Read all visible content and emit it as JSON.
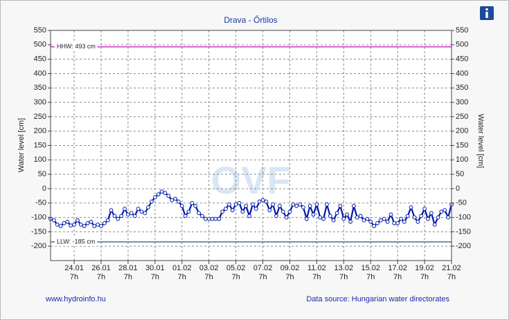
{
  "chart_data": {
    "type": "line",
    "title": "Drava - Őrtilos",
    "y_label": "Water level [cm]",
    "y2_label": "Water level [cm]",
    "watermark": "OVF",
    "footer_left": "www.hydroinfo.hu",
    "footer_right": "Data source: Hungarian water directorates",
    "color": "#0018a8",
    "grid": true,
    "ylim": [
      -250,
      550
    ],
    "yticks": [
      -200,
      -150,
      -100,
      -50,
      0,
      50,
      100,
      150,
      200,
      250,
      300,
      350,
      400,
      450,
      500,
      550
    ],
    "xlim": [
      "22.01 13h",
      "21.02 7h"
    ],
    "xticks": [
      [
        "24.01",
        "7h"
      ],
      [
        "26.01",
        "7h"
      ],
      [
        "28.01",
        "7h"
      ],
      [
        "30.01",
        "7h"
      ],
      [
        "01.02",
        "7h"
      ],
      [
        "03.02",
        "7h"
      ],
      [
        "05.02",
        "7h"
      ],
      [
        "07.02",
        "7h"
      ],
      [
        "09.02",
        "7h"
      ],
      [
        "11.02",
        "7h"
      ],
      [
        "13.02",
        "7h"
      ],
      [
        "15.02",
        "7h"
      ],
      [
        "17.02",
        "7h"
      ],
      [
        "19.02",
        "7h"
      ],
      [
        "21.02",
        "7h"
      ]
    ],
    "annotations": [
      {
        "label": "HHW: 493 cm",
        "value": 493,
        "color": "#d030c8"
      },
      {
        "label": "LLW: -185 cm",
        "value": -185,
        "color": "#4a6a9a"
      }
    ],
    "x": [
      "22.01 13h",
      "22.01 19h",
      "23.01 1h",
      "23.01 7h",
      "23.01 13h",
      "23.01 19h",
      "24.01 1h",
      "24.01 7h",
      "24.01 13h",
      "24.01 19h",
      "25.01 1h",
      "25.01 7h",
      "25.01 13h",
      "25.01 19h",
      "26.01 1h",
      "26.01 7h",
      "26.01 13h",
      "26.01 19h",
      "27.01 1h",
      "27.01 7h",
      "27.01 13h",
      "27.01 19h",
      "28.01 1h",
      "28.01 7h",
      "28.01 13h",
      "28.01 19h",
      "29.01 1h",
      "29.01 7h",
      "29.01 13h",
      "29.01 19h",
      "30.01 1h",
      "30.01 7h",
      "30.01 13h",
      "30.01 19h",
      "31.01 1h",
      "31.01 7h",
      "31.01 13h",
      "31.01 19h",
      "01.02 1h",
      "01.02 7h",
      "01.02 13h",
      "01.02 19h",
      "02.02 1h",
      "02.02 7h",
      "02.02 13h",
      "02.02 19h",
      "03.02 1h",
      "03.02 7h",
      "03.02 13h",
      "03.02 19h",
      "04.02 1h",
      "04.02 7h",
      "04.02 13h",
      "04.02 19h",
      "05.02 1h",
      "05.02 7h",
      "05.02 13h",
      "05.02 19h",
      "06.02 1h",
      "06.02 7h",
      "06.02 13h",
      "06.02 19h",
      "07.02 1h",
      "07.02 7h",
      "07.02 13h",
      "07.02 19h",
      "08.02 1h",
      "08.02 7h",
      "08.02 13h",
      "08.02 19h",
      "09.02 1h",
      "09.02 7h",
      "09.02 13h",
      "09.02 19h",
      "10.02 1h",
      "10.02 7h",
      "10.02 13h",
      "10.02 19h",
      "11.02 1h",
      "11.02 7h",
      "11.02 13h",
      "11.02 19h",
      "12.02 1h",
      "12.02 7h",
      "12.02 13h",
      "12.02 19h",
      "13.02 1h",
      "13.02 7h",
      "13.02 13h",
      "13.02 19h",
      "14.02 1h",
      "14.02 7h",
      "14.02 13h",
      "14.02 19h",
      "15.02 1h",
      "15.02 7h",
      "15.02 13h",
      "15.02 19h",
      "16.02 1h",
      "16.02 7h",
      "16.02 13h",
      "16.02 19h",
      "17.02 1h",
      "17.02 7h",
      "17.02 13h",
      "17.02 19h",
      "18.02 1h",
      "18.02 7h",
      "18.02 13h",
      "18.02 19h",
      "19.02 1h",
      "19.02 7h",
      "19.02 13h",
      "19.02 19h",
      "20.02 1h",
      "20.02 7h",
      "20.02 13h",
      "20.02 19h",
      "21.02 1h",
      "21.02 7h"
    ],
    "values": [
      -105,
      -110,
      -125,
      -130,
      -120,
      -115,
      -128,
      -125,
      -110,
      -125,
      -130,
      -120,
      -115,
      -130,
      -125,
      -130,
      -120,
      -110,
      -75,
      -95,
      -105,
      -95,
      -70,
      -90,
      -85,
      -95,
      -70,
      -80,
      -85,
      -65,
      -45,
      -30,
      -20,
      -10,
      -15,
      -25,
      -40,
      -35,
      -45,
      -60,
      -95,
      -80,
      -50,
      -60,
      -85,
      -95,
      -105,
      -105,
      -105,
      -105,
      -105,
      -80,
      -70,
      -55,
      -75,
      -55,
      -50,
      -80,
      -60,
      -95,
      -55,
      -70,
      -45,
      -40,
      -45,
      -75,
      -55,
      -95,
      -60,
      -80,
      -100,
      -80,
      -55,
      -60,
      -55,
      -65,
      -105,
      -60,
      -90,
      -55,
      -100,
      -105,
      -55,
      -95,
      -110,
      -85,
      -60,
      -105,
      -90,
      -115,
      -60,
      -100,
      -95,
      -110,
      -105,
      -115,
      -130,
      -120,
      -110,
      -105,
      -115,
      -90,
      -120,
      -120,
      -105,
      -115,
      -95,
      -65,
      -100,
      -115,
      -95,
      -70,
      -105,
      -85,
      -125,
      -100,
      -80,
      -75,
      -100,
      -55
    ]
  }
}
